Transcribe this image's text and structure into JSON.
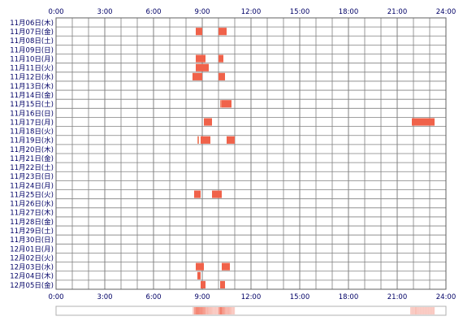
{
  "chart_data": {
    "type": "heatmap",
    "title": "",
    "xlabel": "",
    "ylabel": "",
    "x_ticks": [
      "0:00",
      "3:00",
      "6:00",
      "9:00",
      "12:00",
      "15:00",
      "18:00",
      "21:00",
      "24:00"
    ],
    "x_range_hours": [
      0,
      24
    ],
    "rows": [
      {
        "label": "11月06日(木)",
        "events": []
      },
      {
        "label": "11月07日(金)",
        "events": [
          [
            8.6,
            9.0
          ],
          [
            10.0,
            10.2
          ],
          [
            10.2,
            10.5
          ]
        ]
      },
      {
        "label": "11月08日(土)",
        "events": []
      },
      {
        "label": "11月09日(日)",
        "events": []
      },
      {
        "label": "11月10日(月)",
        "events": [
          [
            8.6,
            9.2
          ],
          [
            10.0,
            10.3
          ]
        ]
      },
      {
        "label": "11月11日(火)",
        "events": [
          [
            8.6,
            9.4
          ]
        ]
      },
      {
        "label": "11月12日(水)",
        "events": [
          [
            8.4,
            9.0
          ],
          [
            10.0,
            10.4
          ]
        ]
      },
      {
        "label": "11月13日(木)",
        "events": []
      },
      {
        "label": "11月14日(金)",
        "events": []
      },
      {
        "label": "11月15日(土)",
        "events": [
          [
            10.1,
            10.2
          ],
          [
            10.2,
            10.8
          ]
        ]
      },
      {
        "label": "11月16日(日)",
        "events": []
      },
      {
        "label": "11月17日(月)",
        "events": [
          [
            9.1,
            9.6
          ],
          [
            21.9,
            22.2
          ],
          [
            22.2,
            23.3
          ]
        ]
      },
      {
        "label": "11月18日(火)",
        "events": []
      },
      {
        "label": "11月19日(水)",
        "events": [
          [
            8.7,
            8.8
          ],
          [
            8.9,
            9.5
          ],
          [
            10.5,
            11.0
          ]
        ]
      },
      {
        "label": "11月20日(木)",
        "events": []
      },
      {
        "label": "11月21日(金)",
        "events": []
      },
      {
        "label": "11月22日(土)",
        "events": []
      },
      {
        "label": "11月23日(日)",
        "events": []
      },
      {
        "label": "11月24日(月)",
        "events": []
      },
      {
        "label": "11月25日(火)",
        "events": [
          [
            8.5,
            8.9
          ],
          [
            9.6,
            10.2
          ]
        ]
      },
      {
        "label": "11月26日(水)",
        "events": []
      },
      {
        "label": "11月27日(木)",
        "events": []
      },
      {
        "label": "11月28日(金)",
        "events": []
      },
      {
        "label": "11月29日(土)",
        "events": []
      },
      {
        "label": "11月30日(日)",
        "events": []
      },
      {
        "label": "12月01日(月)",
        "events": []
      },
      {
        "label": "12月02日(火)",
        "events": []
      },
      {
        "label": "12月03日(水)",
        "events": [
          [
            8.6,
            9.1
          ],
          [
            10.2,
            10.7
          ]
        ]
      },
      {
        "label": "12月04日(木)",
        "events": [
          [
            8.7,
            8.9
          ]
        ]
      },
      {
        "label": "12月05日(金)",
        "events": [
          [
            8.9,
            9.2
          ],
          [
            10.1,
            10.4
          ]
        ]
      }
    ],
    "colors": {
      "event_fill": "#f0624a",
      "event_light": "#f08a70",
      "grid_line": "#808080",
      "border": "#606060",
      "label_text": "#000066",
      "summary_band": "#fde2d6",
      "summary_border": "#b0b0b0"
    }
  }
}
